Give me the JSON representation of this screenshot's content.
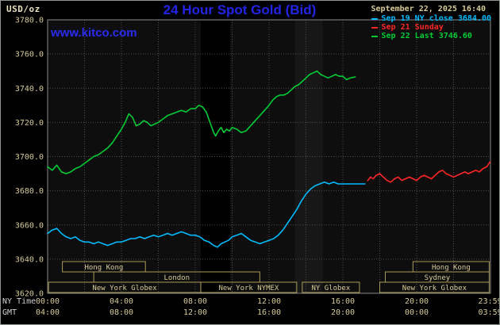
{
  "header": {
    "unit": "USD/oz",
    "title": "24 Hour Spot Gold (Bid)",
    "watermark": "www.kitco.com"
  },
  "legend": {
    "date": "September 22, 2025 16:40",
    "items": [
      {
        "label": "Sep 19 NY close 3684.00",
        "color": "#00bbff"
      },
      {
        "label": "Sep 21 Sunday",
        "color": "#ff2626"
      },
      {
        "label": "Sep 22 Last 3746.60",
        "color": "#00cc33"
      }
    ]
  },
  "axes": {
    "ny_time_label": "NY Time",
    "gmt_label": "GMT",
    "y_ticks": [
      "3780.0",
      "3760.0",
      "3740.0",
      "3720.0",
      "3700.0",
      "3680.0",
      "3660.0",
      "3640.0",
      "3620.0"
    ],
    "x_ticks": [
      {
        "hour": 0,
        "ny": "00:00",
        "gmt": "04:00"
      },
      {
        "hour": 4,
        "ny": "04:00",
        "gmt": "08:00"
      },
      {
        "hour": 8,
        "ny": "08:00",
        "gmt": "12:00"
      },
      {
        "hour": 12,
        "ny": "12:00",
        "gmt": "16:00"
      },
      {
        "hour": 16,
        "ny": "16:00",
        "gmt": "20:00"
      },
      {
        "hour": 20,
        "ny": "20:00",
        "gmt": "00:00"
      },
      {
        "hour": 23.983,
        "ny": "23:59",
        "gmt": "03:59"
      }
    ]
  },
  "sessions": [
    {
      "label": "Hong Kong",
      "row": 0,
      "start": 0.8,
      "end": 5.3
    },
    {
      "label": "Hong Kong",
      "row": 0,
      "start": 19.8,
      "end": 23.93
    },
    {
      "label": "London",
      "row": 1,
      "start": 2.5,
      "end": 11.5
    },
    {
      "label": "Sydney",
      "row": 1,
      "start": 18.3,
      "end": 23.93
    },
    {
      "label": "New York Globex",
      "row": 2,
      "start": 0.05,
      "end": 8.3
    },
    {
      "label": "New York NYMEX",
      "row": 2,
      "start": 8.3,
      "end": 13.5
    },
    {
      "label": "NY Globex",
      "row": 2,
      "start": 13.8,
      "end": 16.9
    },
    {
      "label": "New York Globex",
      "row": 2,
      "start": 18.0,
      "end": 23.93
    }
  ],
  "colors": {
    "axis_text": "#d6ca96",
    "time_row_label": "#cfcfcf",
    "grid": "#4f4f4f",
    "frame": "#8a8a8a",
    "plot_bg": "#0e0e0e",
    "session_border": "#a89a55",
    "session_text": "#d8cc98",
    "title_blue": "#2424e9",
    "watermark_blue": "#2b2bf2",
    "tan": "#d6ca96"
  },
  "chart_data": {
    "type": "line",
    "title": "24 Hour Spot Gold (Bid)",
    "xlabel": "NY Time (hours)",
    "ylabel": "USD/oz",
    "xlim": [
      0,
      24
    ],
    "ylim": [
      3620,
      3780
    ],
    "grid": true,
    "legend_position": "top-right",
    "bands": [
      {
        "x0": 8.3,
        "x1": 9.9,
        "color": "#000000"
      },
      {
        "x0": 13.4,
        "x1": 14.9,
        "color": "#171717"
      }
    ],
    "series": [
      {
        "name": "Sep 19 NY close 3684.00",
        "color": "#00bbff",
        "points": [
          [
            0,
            3655
          ],
          [
            0.25,
            3657
          ],
          [
            0.5,
            3658
          ],
          [
            0.75,
            3655
          ],
          [
            1,
            3653
          ],
          [
            1.25,
            3652
          ],
          [
            1.5,
            3653
          ],
          [
            1.75,
            3651
          ],
          [
            2,
            3650
          ],
          [
            2.25,
            3650
          ],
          [
            2.5,
            3649
          ],
          [
            2.75,
            3650
          ],
          [
            3,
            3649
          ],
          [
            3.25,
            3648
          ],
          [
            3.5,
            3649
          ],
          [
            3.75,
            3650
          ],
          [
            4,
            3650
          ],
          [
            4.25,
            3651
          ],
          [
            4.5,
            3652
          ],
          [
            4.75,
            3652
          ],
          [
            5,
            3653
          ],
          [
            5.25,
            3652
          ],
          [
            5.5,
            3653
          ],
          [
            5.75,
            3654
          ],
          [
            6,
            3653
          ],
          [
            6.25,
            3654
          ],
          [
            6.5,
            3655
          ],
          [
            6.75,
            3654
          ],
          [
            7,
            3655
          ],
          [
            7.25,
            3656
          ],
          [
            7.5,
            3655
          ],
          [
            7.75,
            3654
          ],
          [
            8,
            3654
          ],
          [
            8.25,
            3653
          ],
          [
            8.5,
            3651
          ],
          [
            8.75,
            3650
          ],
          [
            9,
            3648
          ],
          [
            9.2,
            3647
          ],
          [
            9.4,
            3649
          ],
          [
            9.6,
            3650
          ],
          [
            9.8,
            3651
          ],
          [
            10,
            3653
          ],
          [
            10.25,
            3654
          ],
          [
            10.5,
            3655
          ],
          [
            10.75,
            3653
          ],
          [
            11,
            3651
          ],
          [
            11.25,
            3650
          ],
          [
            11.5,
            3649
          ],
          [
            11.75,
            3650
          ],
          [
            12,
            3651
          ],
          [
            12.25,
            3652
          ],
          [
            12.5,
            3654
          ],
          [
            12.75,
            3657
          ],
          [
            13,
            3661
          ],
          [
            13.25,
            3665
          ],
          [
            13.5,
            3669
          ],
          [
            13.75,
            3674
          ],
          [
            14,
            3678
          ],
          [
            14.25,
            3681
          ],
          [
            14.5,
            3683
          ],
          [
            14.75,
            3684
          ],
          [
            15,
            3685
          ],
          [
            15.25,
            3684
          ],
          [
            15.5,
            3685
          ],
          [
            15.75,
            3684
          ],
          [
            16,
            3684
          ],
          [
            16.25,
            3684
          ],
          [
            16.5,
            3684
          ],
          [
            16.75,
            3684
          ],
          [
            17,
            3684
          ],
          [
            17.2,
            3684
          ]
        ]
      },
      {
        "name": "Sep 21 Sunday",
        "color": "#ff2626",
        "points": [
          [
            17.35,
            3686
          ],
          [
            17.5,
            3688
          ],
          [
            17.65,
            3687
          ],
          [
            17.8,
            3689
          ],
          [
            18,
            3690
          ],
          [
            18.2,
            3688
          ],
          [
            18.4,
            3686
          ],
          [
            18.6,
            3685
          ],
          [
            18.8,
            3687
          ],
          [
            19,
            3688
          ],
          [
            19.2,
            3686
          ],
          [
            19.4,
            3687
          ],
          [
            19.6,
            3688
          ],
          [
            19.8,
            3687
          ],
          [
            20,
            3686
          ],
          [
            20.2,
            3688
          ],
          [
            20.4,
            3689
          ],
          [
            20.6,
            3688
          ],
          [
            20.8,
            3687
          ],
          [
            21,
            3689
          ],
          [
            21.2,
            3691
          ],
          [
            21.4,
            3692
          ],
          [
            21.6,
            3690
          ],
          [
            21.8,
            3689
          ],
          [
            22,
            3688
          ],
          [
            22.2,
            3689
          ],
          [
            22.4,
            3690
          ],
          [
            22.6,
            3691
          ],
          [
            22.8,
            3690
          ],
          [
            23,
            3691
          ],
          [
            23.2,
            3692
          ],
          [
            23.4,
            3691
          ],
          [
            23.6,
            3693
          ],
          [
            23.8,
            3694
          ],
          [
            23.98,
            3697
          ]
        ]
      },
      {
        "name": "Sep 22 Last 3746.60",
        "color": "#00cc33",
        "points": [
          [
            0,
            3694
          ],
          [
            0.25,
            3692
          ],
          [
            0.5,
            3695
          ],
          [
            0.75,
            3691
          ],
          [
            1,
            3690
          ],
          [
            1.25,
            3691
          ],
          [
            1.5,
            3693
          ],
          [
            1.75,
            3694
          ],
          [
            2,
            3696
          ],
          [
            2.25,
            3698
          ],
          [
            2.5,
            3700
          ],
          [
            2.75,
            3701
          ],
          [
            3,
            3703
          ],
          [
            3.25,
            3705
          ],
          [
            3.5,
            3708
          ],
          [
            3.75,
            3712
          ],
          [
            4,
            3716
          ],
          [
            4.2,
            3720
          ],
          [
            4.4,
            3725
          ],
          [
            4.6,
            3723
          ],
          [
            4.8,
            3718
          ],
          [
            5,
            3719
          ],
          [
            5.2,
            3721
          ],
          [
            5.4,
            3720
          ],
          [
            5.6,
            3718
          ],
          [
            5.8,
            3719
          ],
          [
            6,
            3720
          ],
          [
            6.25,
            3722
          ],
          [
            6.5,
            3724
          ],
          [
            6.75,
            3725
          ],
          [
            7,
            3726
          ],
          [
            7.25,
            3727
          ],
          [
            7.5,
            3726
          ],
          [
            7.75,
            3728
          ],
          [
            8,
            3728
          ],
          [
            8.2,
            3730
          ],
          [
            8.4,
            3729
          ],
          [
            8.6,
            3726
          ],
          [
            8.8,
            3720
          ],
          [
            9,
            3714
          ],
          [
            9.1,
            3712
          ],
          [
            9.25,
            3715
          ],
          [
            9.4,
            3717
          ],
          [
            9.55,
            3714
          ],
          [
            9.7,
            3716
          ],
          [
            9.85,
            3715
          ],
          [
            10,
            3717
          ],
          [
            10.25,
            3716
          ],
          [
            10.5,
            3714
          ],
          [
            10.75,
            3715
          ],
          [
            11,
            3718
          ],
          [
            11.25,
            3721
          ],
          [
            11.5,
            3724
          ],
          [
            11.75,
            3727
          ],
          [
            12,
            3730
          ],
          [
            12.2,
            3733
          ],
          [
            12.4,
            3735
          ],
          [
            12.6,
            3736
          ],
          [
            12.8,
            3736
          ],
          [
            13,
            3737
          ],
          [
            13.2,
            3739
          ],
          [
            13.4,
            3741
          ],
          [
            13.6,
            3742
          ],
          [
            13.8,
            3744
          ],
          [
            14,
            3746
          ],
          [
            14.2,
            3748
          ],
          [
            14.4,
            3749
          ],
          [
            14.6,
            3750
          ],
          [
            14.8,
            3748
          ],
          [
            15,
            3747
          ],
          [
            15.2,
            3746
          ],
          [
            15.4,
            3747
          ],
          [
            15.6,
            3748
          ],
          [
            15.8,
            3747
          ],
          [
            16,
            3747
          ],
          [
            16.2,
            3745
          ],
          [
            16.4,
            3746
          ],
          [
            16.67,
            3746.6
          ]
        ]
      }
    ]
  }
}
